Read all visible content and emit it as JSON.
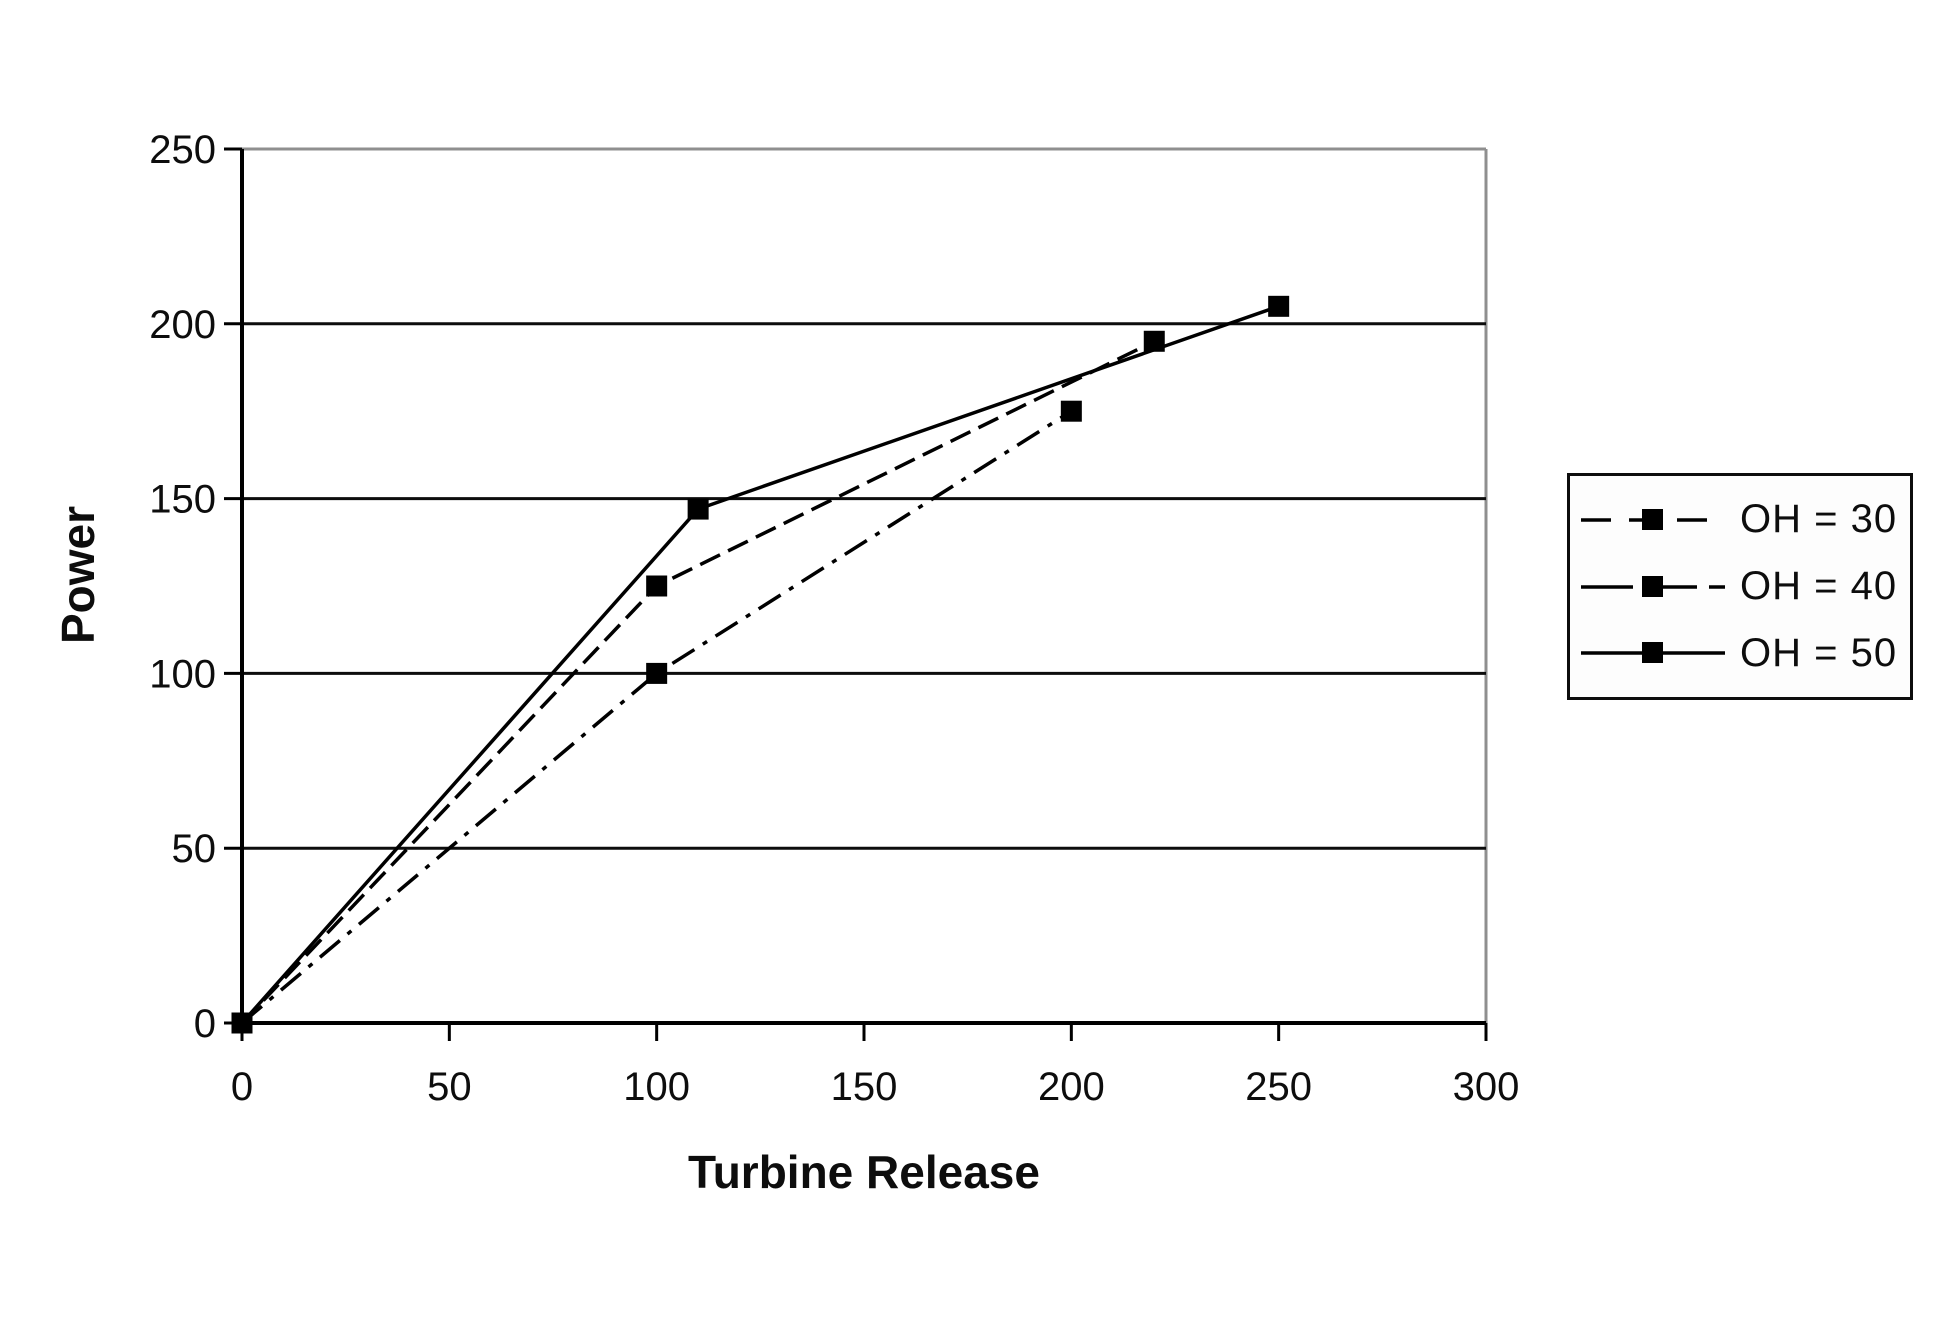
{
  "chart_data": {
    "type": "line",
    "xlabel": "Turbine Release",
    "ylabel": "Power",
    "xlim": [
      0,
      300
    ],
    "ylim": [
      0,
      250
    ],
    "xticks": [
      0,
      50,
      100,
      150,
      200,
      250,
      300
    ],
    "yticks": [
      0,
      50,
      100,
      150,
      200,
      250
    ],
    "grid": "horizontal-black-gridlines",
    "legend_position": "right-outside-boxed",
    "marker": "filled-square",
    "series": [
      {
        "name": "OH = 30",
        "style": "dash-dot",
        "dash": [
          26,
          10,
          5,
          10
        ],
        "legend_dash": [
          30,
          18
        ],
        "points": [
          [
            0,
            0
          ],
          [
            100,
            100
          ],
          [
            200,
            175
          ]
        ]
      },
      {
        "name": "OH = 40",
        "style": "dashed",
        "dash": [
          22,
          9
        ],
        "legend_dash": [
          52,
          12
        ],
        "points": [
          [
            0,
            0
          ],
          [
            100,
            125
          ],
          [
            220,
            195
          ]
        ]
      },
      {
        "name": "OH = 50",
        "style": "solid",
        "dash": [],
        "legend_dash": [],
        "points": [
          [
            0,
            0
          ],
          [
            110,
            147
          ],
          [
            250,
            205
          ]
        ]
      }
    ],
    "colors": {
      "line": "#000000",
      "marker": "#000000",
      "grid": "#0d0d0d",
      "axis": "#000000",
      "plot_border": "#8f8f8f",
      "text": "#0d0d0d",
      "background": "#ffffff"
    }
  }
}
